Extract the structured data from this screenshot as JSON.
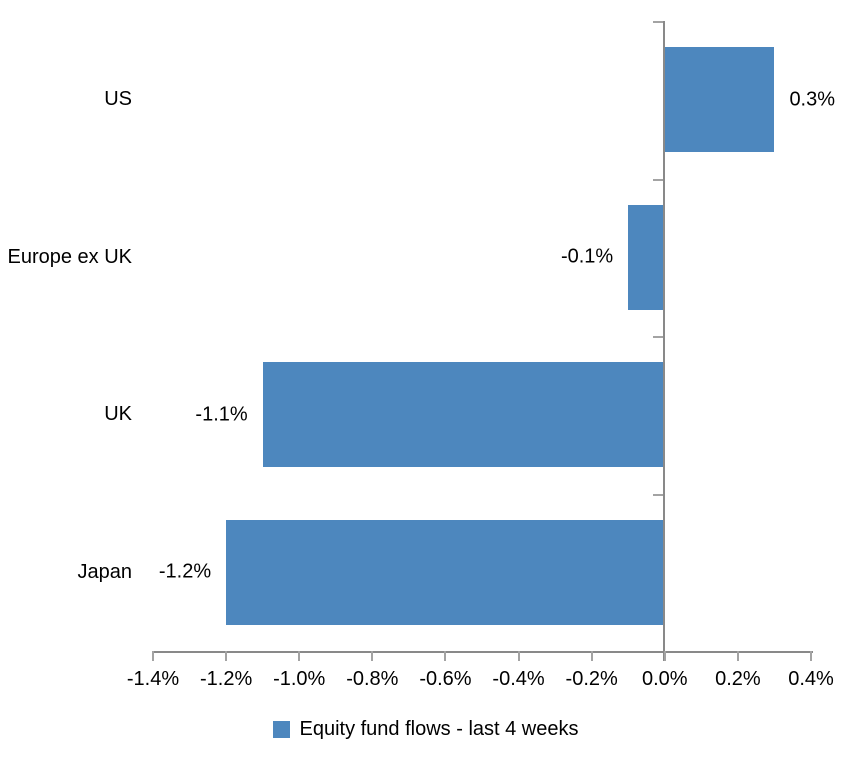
{
  "chart_data": {
    "type": "bar",
    "orientation": "horizontal",
    "categories": [
      "US",
      "Europe ex UK",
      "UK",
      "Japan"
    ],
    "values": [
      0.3,
      -0.1,
      -1.1,
      -1.2
    ],
    "data_labels": [
      "0.3%",
      "-0.1%",
      "-1.1%",
      "-1.2%"
    ],
    "xlim": [
      -1.4,
      0.4
    ],
    "x_tick_step": 0.2,
    "x_tick_labels": [
      "-1.4%",
      "-1.2%",
      "-1.0%",
      "-0.8%",
      "-0.6%",
      "-0.4%",
      "-0.2%",
      "0.0%",
      "0.2%",
      "0.4%"
    ],
    "grid": false,
    "title": "",
    "xlabel": "",
    "ylabel": "",
    "bar_color": "#4D87BE",
    "axis_color": "#898989",
    "tick_color": "#A3A3A3",
    "text_color": "#000000",
    "legend_position": "bottom",
    "legend": {
      "label": "Equity fund flows - last 4 weeks",
      "marker_color": "#4D87BE"
    }
  }
}
